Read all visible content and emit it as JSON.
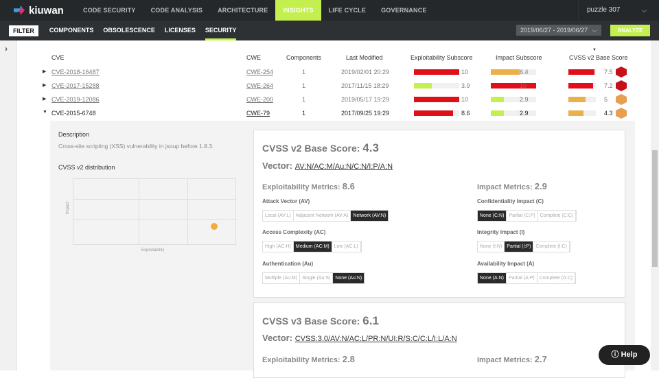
{
  "nav": {
    "logo": "kiuwan",
    "items": [
      "CODE SECURITY",
      "CODE ANALYSIS",
      "ARCHITECTURE",
      "INSIGHTS",
      "LIFE CYCLE",
      "GOVERNANCE"
    ],
    "active": "INSIGHTS",
    "project": "puzzle 307"
  },
  "subnav": {
    "filter": "FILTER",
    "tabs": [
      "COMPONENTS",
      "OBSOLESCENCE",
      "LICENSES",
      "SECURITY"
    ],
    "active": "SECURITY",
    "date_range": "2019/06/27 - 2019/06/27",
    "analyze": "ANALYZE"
  },
  "table": {
    "headers": [
      "CVE",
      "CWE",
      "Components",
      "Last Modified",
      "Exploitability Subscore",
      "Impact Subscore",
      "CVSS v2 Base Score"
    ],
    "sorted_by": "CVSS v2 Base Score",
    "rows": [
      {
        "cve": "CVE-2018-16487",
        "cwe": "CWE-254",
        "components": "1",
        "modified": "2019/02/01 20:29",
        "expl": "10",
        "impact": "6.4",
        "cvss": "7.5",
        "expanded": false
      },
      {
        "cve": "CVE-2017-15288",
        "cwe": "CWE-264",
        "components": "1",
        "modified": "2017/11/15 18:29",
        "expl": "3.9",
        "impact": "10",
        "cvss": "7.2",
        "expanded": false
      },
      {
        "cve": "CVE-2019-12086",
        "cwe": "CWE-200",
        "components": "1",
        "modified": "2019/05/17 19:29",
        "expl": "10",
        "impact": "2.9",
        "cvss": "5",
        "expanded": false
      },
      {
        "cve": "CVE-2015-6748",
        "cwe": "CWE-79",
        "components": "1",
        "modified": "2017/09/25 19:29",
        "expl": "8.6",
        "impact": "2.9",
        "cvss": "4.3",
        "expanded": true
      }
    ]
  },
  "colors": {
    "high": "#e0101a",
    "medium": "#ecb04a",
    "low": "#c3f04e",
    "track": "#f0f0f0",
    "accent": "#c3f04e"
  },
  "detail": {
    "description_label": "Description",
    "description": "Cross-site scripting (XSS) vulnerability in jsoup before 1.8.3.",
    "distribution_label": "CVSS v2 distribution",
    "y_label": "Impact",
    "x_label": "Exploitability",
    "point": {
      "exploitability": 8.6,
      "impact": 2.9
    },
    "v2": {
      "title": "CVSS v2 Base Score:",
      "score": "4.3",
      "vector_label": "Vector:",
      "vector": "AV:N/AC:M/Au:N/C:N/I:P/A:N",
      "expl_label": "Exploitability Metrics:",
      "expl": "8.6",
      "impact_label": "Impact Metrics:",
      "impact": "2.9",
      "groups": [
        {
          "label": "Attack Vector (AV)",
          "options": [
            "Local (AV:L)",
            "Adjacent Network (AV:A)",
            "Network (AV:N)"
          ],
          "selected": 2
        },
        {
          "label": "Access Complexity (AC)",
          "options": [
            "High (AC:H)",
            "Medium (AC:M)",
            "Low (AC:L)"
          ],
          "selected": 1
        },
        {
          "label": "Authentication (Au)",
          "options": [
            "Multiple (Au:M)",
            "Single (Au:S)",
            "None (Au:N)"
          ],
          "selected": 2
        },
        {
          "label": "Confidentiality Impact (C)",
          "options": [
            "None (C:N)",
            "Partial (C:P)",
            "Complete (C:C)"
          ],
          "selected": 0
        },
        {
          "label": "Integrity Impact (I)",
          "options": [
            "None (I:N)",
            "Partial (I:P)",
            "Complete (I:C)"
          ],
          "selected": 1
        },
        {
          "label": "Availability Impact (A)",
          "options": [
            "None (A:N)",
            "Partial (A:P)",
            "Complete (A:C)"
          ],
          "selected": 0
        }
      ]
    },
    "v3": {
      "title": "CVSS v3 Base Score:",
      "score": "6.1",
      "vector_label": "Vector:",
      "vector": "CVSS:3.0/AV:N/AC:L/PR:N/UI:R/S:C/C:L/I:L/A:N",
      "expl_label": "Exploitability Metrics:",
      "expl": "2.8",
      "impact_label": "Impact Metrics:",
      "impact": "2.7"
    }
  },
  "help": "Help"
}
